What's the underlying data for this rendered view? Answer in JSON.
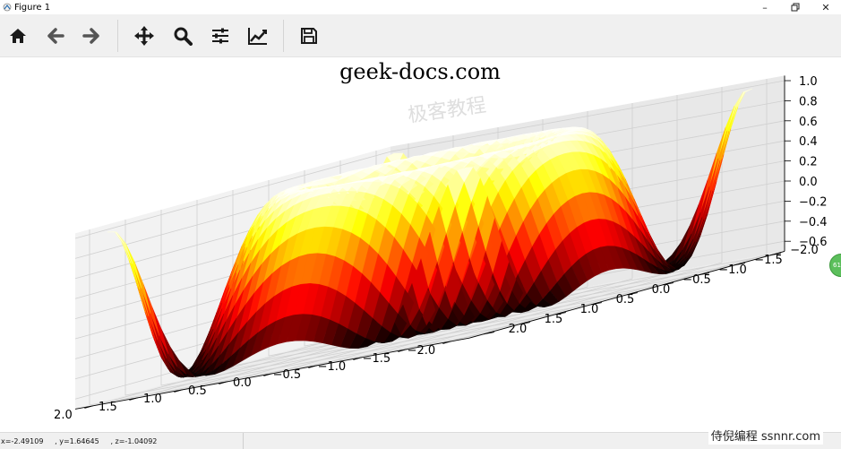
{
  "window": {
    "title": "Figure 1",
    "controls": [
      "minimize-icon",
      "restore-icon",
      "close-icon"
    ]
  },
  "toolbar": {
    "buttons": [
      {
        "name": "home",
        "icon": "home-icon"
      },
      {
        "name": "back",
        "icon": "arrow-left-icon"
      },
      {
        "name": "forward",
        "icon": "arrow-right-icon"
      },
      {
        "name": "pan",
        "icon": "move-icon"
      },
      {
        "name": "zoom",
        "icon": "magnifier-icon"
      },
      {
        "name": "subplots",
        "icon": "sliders-icon"
      },
      {
        "name": "edit-axis",
        "icon": "line-chart-icon"
      },
      {
        "name": "save",
        "icon": "floppy-icon"
      }
    ]
  },
  "status": {
    "coords": "x=-2.49109     , y=1.64645     , z=-1.04092"
  },
  "overlay": {
    "site_mark": "侍倪编程 ssnnr.com",
    "side_badge": "61"
  },
  "chart_data": {
    "type": "surface",
    "title": "geek-docs.com",
    "function": "z = sin(x^2 + y^2) sampled on x,y grid",
    "colormap": "hot",
    "xlim": [
      -2,
      2
    ],
    "ylim": [
      -2,
      2
    ],
    "zlim": [
      -0.6,
      1.0
    ],
    "x_ticks": [
      "2.0",
      "1.5",
      "1.0",
      "0.5",
      "0.0",
      "−0.5",
      "−1.0",
      "−1.5",
      "−2.0"
    ],
    "y_ticks": [
      "2.0",
      "1.5",
      "1.0",
      "0.5",
      "0.0",
      "−0.5",
      "−1.0",
      "−1.5",
      "−2.0"
    ],
    "z_ticks": [
      "1.0",
      "0.8",
      "0.6",
      "0.4",
      "0.2",
      "0.0",
      "−0.2",
      "−0.4",
      "−0.6"
    ],
    "grid": true,
    "watermark": "极客教程"
  }
}
